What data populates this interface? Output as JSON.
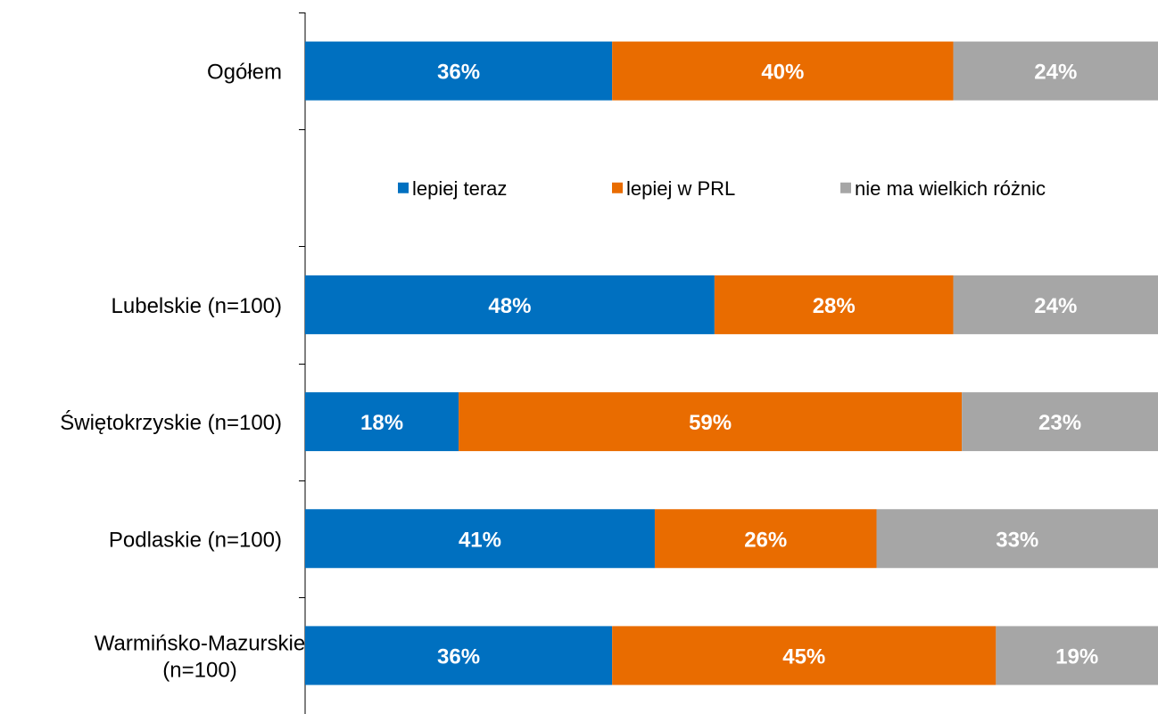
{
  "chart_data": {
    "type": "bar",
    "orientation": "horizontal",
    "stacked": true,
    "categories": [
      [
        "Ogółem"
      ],
      [],
      [
        "Lubelskie (n=100)"
      ],
      [
        "Świętokrzyskie (n=100)"
      ],
      [
        "Podlaskie (n=100)"
      ],
      [
        "Warmińsko-Mazurskie",
        "(n=100)"
      ]
    ],
    "series": [
      {
        "name": "lepiej teraz",
        "color": "#0070C0",
        "values": [
          36,
          null,
          48,
          18,
          41,
          36
        ],
        "labels": [
          "36%",
          "",
          "48%",
          "18%",
          "41%",
          "36%"
        ]
      },
      {
        "name": "lepiej w PRL",
        "color": "#E96C00",
        "values": [
          40,
          null,
          28,
          59,
          26,
          45
        ],
        "labels": [
          "40%",
          "",
          "28%",
          "59%",
          "26%",
          "45%"
        ]
      },
      {
        "name": "nie ma wielkich różnic",
        "color": "#A6A6A6",
        "values": [
          24,
          null,
          24,
          23,
          33,
          19
        ],
        "labels": [
          "24%",
          "",
          "24%",
          "23%",
          "33%",
          "19%"
        ]
      }
    ],
    "xlim": [
      0,
      100
    ],
    "grid": false,
    "legend_position": "inside, between first and second bar"
  }
}
